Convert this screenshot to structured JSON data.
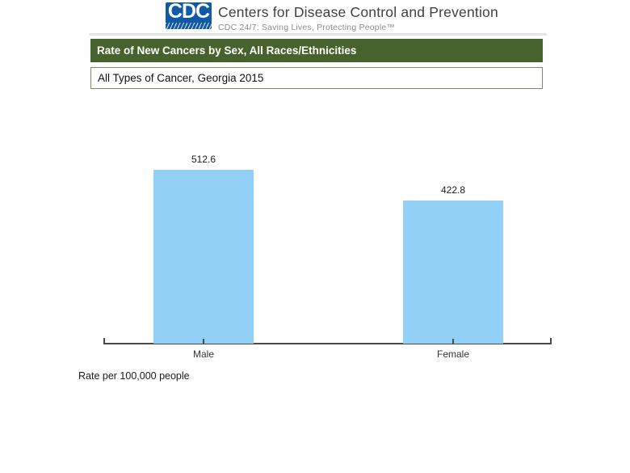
{
  "header": {
    "logo_acronym": "CDC",
    "org_name": "Centers for Disease Control and Prevention",
    "tagline": "CDC 24/7: Saving Lives, Protecting People™"
  },
  "title_bar": {
    "text": "Rate of New Cancers by Sex, All Races/Ethnicities"
  },
  "subtitle_box": {
    "text": "All Types of Cancer, Georgia 2015"
  },
  "footnote": "Rate per 100,000 people",
  "colors": {
    "logo_blue": "#1059a6",
    "header_green": "#46632e",
    "subtitle_border": "#7a8b67",
    "bar_blue": "#92d0f7",
    "axis_gray": "#4a4a4a"
  },
  "chart_data": {
    "type": "bar",
    "categories": [
      "Male",
      "Female"
    ],
    "values": [
      512.6,
      422.8
    ],
    "value_labels": [
      "512.6",
      "422.8"
    ],
    "title": "Rate of New Cancers by Sex, All Races/Ethnicities",
    "subtitle": "All Types of Cancer, Georgia 2015",
    "xlabel": "",
    "ylabel": "Rate per 100,000 people",
    "ylim": [
      0,
      560
    ],
    "grid": false,
    "legend": "none",
    "bar_color": "#92d0f7"
  }
}
